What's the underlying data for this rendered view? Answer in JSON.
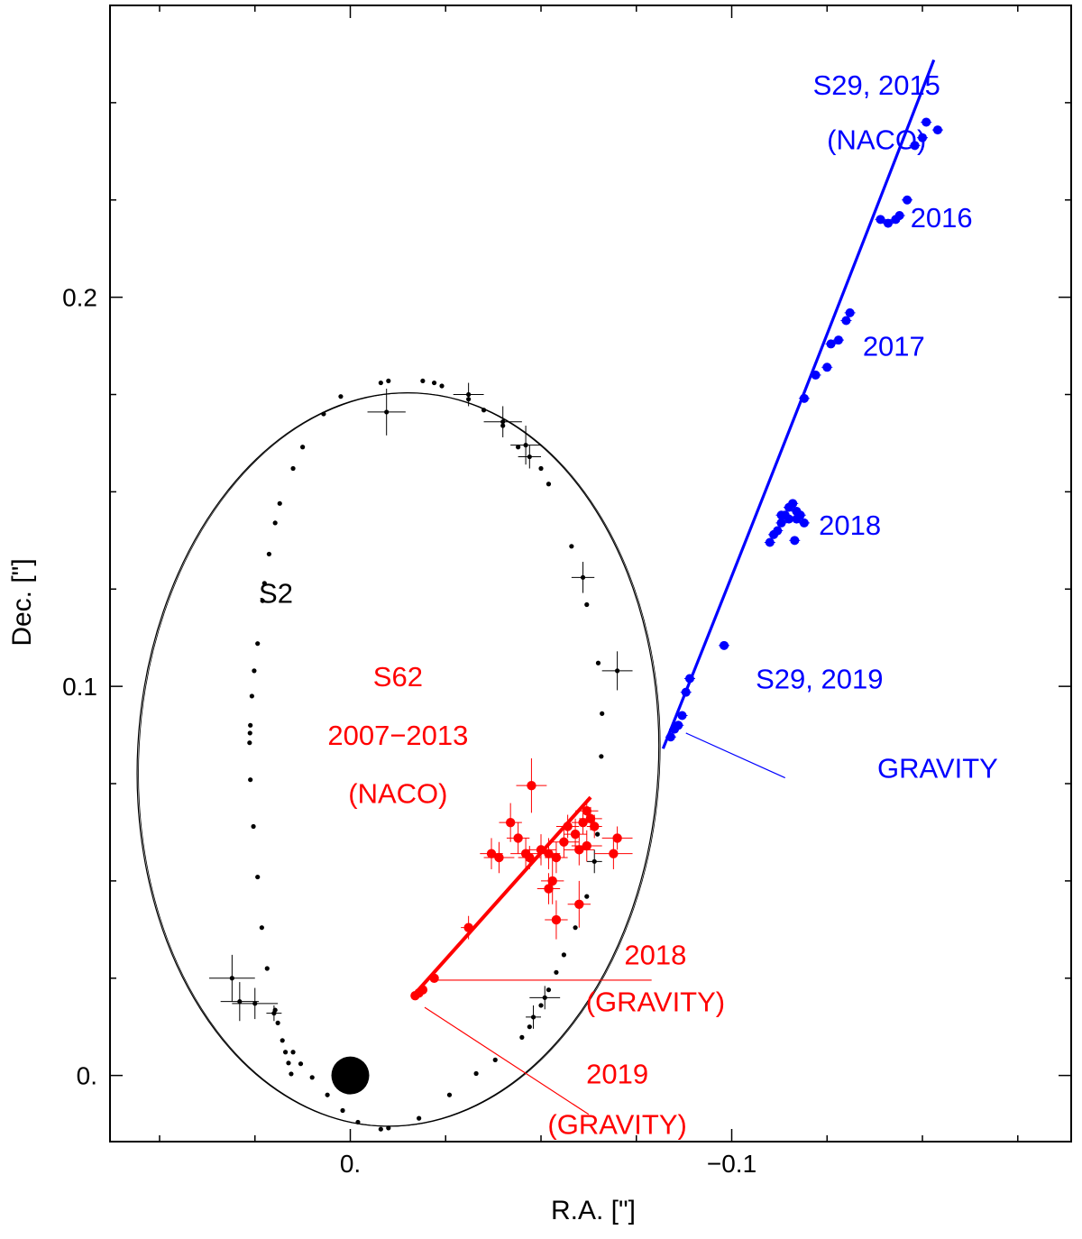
{
  "chart_data": {
    "type": "scatter",
    "title": "",
    "xlabel": "R.A. [\"]",
    "ylabel": "Dec. [\"]",
    "xlim": [
      0.063,
      -0.189
    ],
    "ylim": [
      -0.017,
      0.275
    ],
    "x_ticks": [
      {
        "value": 0.0,
        "label": "0."
      },
      {
        "value": -0.1,
        "label": "−0.1"
      }
    ],
    "y_ticks": [
      {
        "value": 0.0,
        "label": "0."
      },
      {
        "value": 0.1,
        "label": "0.1"
      },
      {
        "value": 0.2,
        "label": "0.2"
      }
    ],
    "grid": false,
    "colors": {
      "s2": "#000000",
      "s62": "#ff0000",
      "s29": "#0000ff",
      "black_hole": "#000000"
    },
    "black_hole": {
      "x": 0.0,
      "y": 0.0
    },
    "s2_orbit": {
      "label": "S2",
      "center": [
        -0.0125,
        0.0812
      ],
      "semi_x": 0.0683,
      "semi_y": 0.0943,
      "tilt_deg": 3,
      "points": [
        [
          0.0155,
          0.0004
        ],
        [
          0.0162,
          0.0032
        ],
        [
          0.017,
          0.006
        ],
        [
          0.0178,
          0.009
        ],
        [
          0.019,
          0.0135
        ],
        [
          0.0197,
          0.0168
        ],
        [
          0.0218,
          0.0275
        ],
        [
          0.0232,
          0.038
        ],
        [
          0.0243,
          0.051
        ],
        [
          0.0254,
          0.064
        ],
        [
          0.0262,
          0.076
        ],
        [
          0.0264,
          0.0855
        ],
        [
          0.0263,
          0.088
        ],
        [
          0.0262,
          0.09
        ],
        [
          0.0258,
          0.0975
        ],
        [
          0.0252,
          0.104
        ],
        [
          0.0243,
          0.111
        ],
        [
          0.023,
          0.122
        ],
        [
          0.0225,
          0.1265
        ],
        [
          0.0213,
          0.134
        ],
        [
          0.0197,
          0.142
        ],
        [
          0.0185,
          0.147
        ],
        [
          0.015,
          0.156
        ],
        [
          0.0125,
          0.1615
        ],
        [
          0.007,
          0.17
        ],
        [
          0.0025,
          0.1745
        ],
        [
          -0.008,
          0.178
        ],
        [
          -0.01,
          0.1785
        ],
        [
          -0.019,
          0.1785
        ],
        [
          -0.022,
          0.178
        ],
        [
          -0.024,
          0.1772
        ],
        [
          -0.031,
          0.1738
        ],
        [
          -0.035,
          0.171
        ],
        [
          -0.04,
          0.167
        ],
        [
          -0.044,
          0.1615
        ],
        [
          -0.05,
          0.156
        ],
        [
          -0.052,
          0.152
        ],
        [
          -0.058,
          0.136
        ],
        [
          -0.062,
          0.121
        ],
        [
          -0.065,
          0.106
        ],
        [
          -0.066,
          0.093
        ],
        [
          -0.0658,
          0.082
        ],
        [
          -0.0648,
          0.062
        ],
        [
          -0.062,
          0.046
        ],
        [
          -0.059,
          0.038
        ],
        [
          -0.056,
          0.031
        ],
        [
          -0.054,
          0.0265
        ],
        [
          -0.052,
          0.022
        ],
        [
          -0.05,
          0.018
        ],
        [
          -0.047,
          0.0125
        ],
        [
          -0.045,
          0.0098
        ],
        [
          -0.038,
          0.004
        ],
        [
          -0.033,
          0.0005
        ],
        [
          -0.026,
          -0.005
        ],
        [
          -0.018,
          -0.011
        ],
        [
          -0.01,
          -0.0135
        ],
        [
          -0.008,
          -0.0138
        ],
        [
          -0.002,
          -0.012
        ],
        [
          0.002,
          -0.009
        ],
        [
          0.006,
          -0.005
        ],
        [
          0.01,
          -0.0005
        ],
        [
          0.013,
          0.003
        ],
        [
          0.015,
          0.006
        ]
      ],
      "error_points": [
        [
          -0.0095,
          0.1705,
          0.005,
          0.006
        ],
        [
          -0.031,
          0.175,
          0.004,
          0.003
        ],
        [
          -0.04,
          0.168,
          0.005,
          0.004
        ],
        [
          -0.046,
          0.162,
          0.004,
          0.005
        ],
        [
          -0.047,
          0.159,
          0.003,
          0.003
        ],
        [
          -0.061,
          0.128,
          0.003,
          0.004
        ],
        [
          -0.07,
          0.104,
          0.004,
          0.005
        ],
        [
          -0.064,
          0.055,
          0.002,
          0.003
        ],
        [
          -0.051,
          0.02,
          0.004,
          0.003
        ],
        [
          0.031,
          0.025,
          0.006,
          0.006
        ],
        [
          0.029,
          0.019,
          0.005,
          0.005
        ],
        [
          0.025,
          0.0185,
          0.006,
          0.004
        ],
        [
          0.02,
          0.016,
          0.002,
          0.002
        ],
        [
          -0.048,
          0.015,
          0.002,
          0.003
        ]
      ]
    },
    "s62": {
      "label": "S62\n2007−2013\n(NACO)",
      "fit_line": [
        [
          -0.0165,
          0.0205
        ],
        [
          -0.063,
          0.0715
        ]
      ],
      "points": [
        [
          -0.0475,
          0.0745,
          0.004,
          0.007
        ],
        [
          -0.037,
          0.057,
          0.003,
          0.004
        ],
        [
          -0.039,
          0.056,
          0.004,
          0.004
        ],
        [
          -0.042,
          0.065,
          0.003,
          0.005
        ],
        [
          -0.044,
          0.061,
          0.003,
          0.004
        ],
        [
          -0.046,
          0.057,
          0.004,
          0.004
        ],
        [
          -0.047,
          0.056,
          0.003,
          0.003
        ],
        [
          -0.05,
          0.058,
          0.004,
          0.004
        ],
        [
          -0.052,
          0.057,
          0.003,
          0.004
        ],
        [
          -0.054,
          0.056,
          0.003,
          0.004
        ],
        [
          -0.053,
          0.05,
          0.003,
          0.006
        ],
        [
          -0.054,
          0.04,
          0.003,
          0.005
        ],
        [
          -0.056,
          0.06,
          0.004,
          0.004
        ],
        [
          -0.057,
          0.064,
          0.003,
          0.003
        ],
        [
          -0.059,
          0.062,
          0.003,
          0.004
        ],
        [
          -0.06,
          0.058,
          0.004,
          0.004
        ],
        [
          -0.061,
          0.065,
          0.003,
          0.003
        ],
        [
          -0.062,
          0.068,
          0.003,
          0.003
        ],
        [
          -0.063,
          0.066,
          0.003,
          0.003
        ],
        [
          -0.064,
          0.064,
          0.002,
          0.003
        ],
        [
          -0.062,
          0.059,
          0.004,
          0.004
        ],
        [
          -0.06,
          0.044,
          0.003,
          0.006
        ],
        [
          -0.069,
          0.057,
          0.005,
          0.004
        ],
        [
          -0.07,
          0.061,
          0.004,
          0.003
        ],
        [
          -0.052,
          0.048,
          0.003,
          0.004
        ],
        [
          -0.031,
          0.038,
          0.002,
          0.003
        ],
        [
          -0.022,
          0.025,
          0.001,
          0.001
        ],
        [
          -0.019,
          0.022,
          0.001,
          0.001
        ],
        [
          -0.017,
          0.0205,
          0.001,
          0.001
        ],
        [
          -0.018,
          0.0212,
          0.001,
          0.001
        ]
      ],
      "annotations": [
        {
          "text": "2018",
          "x": -0.08,
          "y": 0.0285
        },
        {
          "text": "(GRAVITY)",
          "x": -0.08,
          "y": 0.0165
        },
        {
          "text": "2019",
          "x": -0.07,
          "y": -0.002
        },
        {
          "text": "(GRAVITY)",
          "x": -0.07,
          "y": -0.015
        }
      ],
      "leaders": [
        [
          [
            -0.023,
            0.0245
          ],
          [
            -0.079,
            0.0245
          ]
        ],
        [
          [
            -0.0195,
            0.0175
          ],
          [
            -0.0625,
            -0.01
          ]
        ]
      ]
    },
    "s29": {
      "fit_line": [
        [
          -0.082,
          0.084
        ],
        [
          -0.153,
          0.261
        ]
      ],
      "points": [
        [
          -0.084,
          0.087
        ],
        [
          -0.085,
          0.089
        ],
        [
          -0.086,
          0.09
        ],
        [
          -0.087,
          0.0925
        ],
        [
          -0.088,
          0.0985
        ],
        [
          -0.089,
          0.102
        ],
        [
          -0.098,
          0.1105
        ],
        [
          -0.11,
          0.137
        ],
        [
          -0.111,
          0.139
        ],
        [
          -0.112,
          0.14
        ],
        [
          -0.113,
          0.142
        ],
        [
          -0.114,
          0.144
        ],
        [
          -0.115,
          0.146
        ],
        [
          -0.116,
          0.147
        ],
        [
          -0.117,
          0.145
        ],
        [
          -0.115,
          0.143
        ],
        [
          -0.113,
          0.144
        ],
        [
          -0.117,
          0.143
        ],
        [
          -0.118,
          0.144
        ],
        [
          -0.119,
          0.142
        ],
        [
          -0.1165,
          0.1375
        ],
        [
          -0.119,
          0.174
        ],
        [
          -0.122,
          0.18
        ],
        [
          -0.125,
          0.182
        ],
        [
          -0.126,
          0.188
        ],
        [
          -0.128,
          0.189
        ],
        [
          -0.13,
          0.194
        ],
        [
          -0.131,
          0.196
        ],
        [
          -0.139,
          0.22
        ],
        [
          -0.141,
          0.219
        ],
        [
          -0.143,
          0.22
        ],
        [
          -0.144,
          0.221
        ],
        [
          -0.146,
          0.225
        ],
        [
          -0.148,
          0.239
        ],
        [
          -0.15,
          0.241
        ],
        [
          -0.151,
          0.245
        ],
        [
          -0.154,
          0.243
        ]
      ],
      "annotations": [
        {
          "text": "S29, 2015",
          "x": -0.138,
          "y": 0.252
        },
        {
          "text": "(NACO)",
          "x": -0.138,
          "y": 0.238
        },
        {
          "text": "2016",
          "x": -0.155,
          "y": 0.218
        },
        {
          "text": "2017",
          "x": -0.1425,
          "y": 0.185
        },
        {
          "text": "2018",
          "x": -0.131,
          "y": 0.139
        },
        {
          "text": "S29, 2019",
          "x": -0.123,
          "y": 0.0995
        },
        {
          "text": "GRAVITY",
          "x": -0.154,
          "y": 0.0765
        }
      ],
      "leader": [
        [
          -0.088,
          0.088
        ],
        [
          -0.114,
          0.0765
        ]
      ]
    },
    "labels": {
      "s2": "S2",
      "s62_lines": [
        "S62",
        "2007−2013",
        "(NACO)"
      ]
    }
  }
}
